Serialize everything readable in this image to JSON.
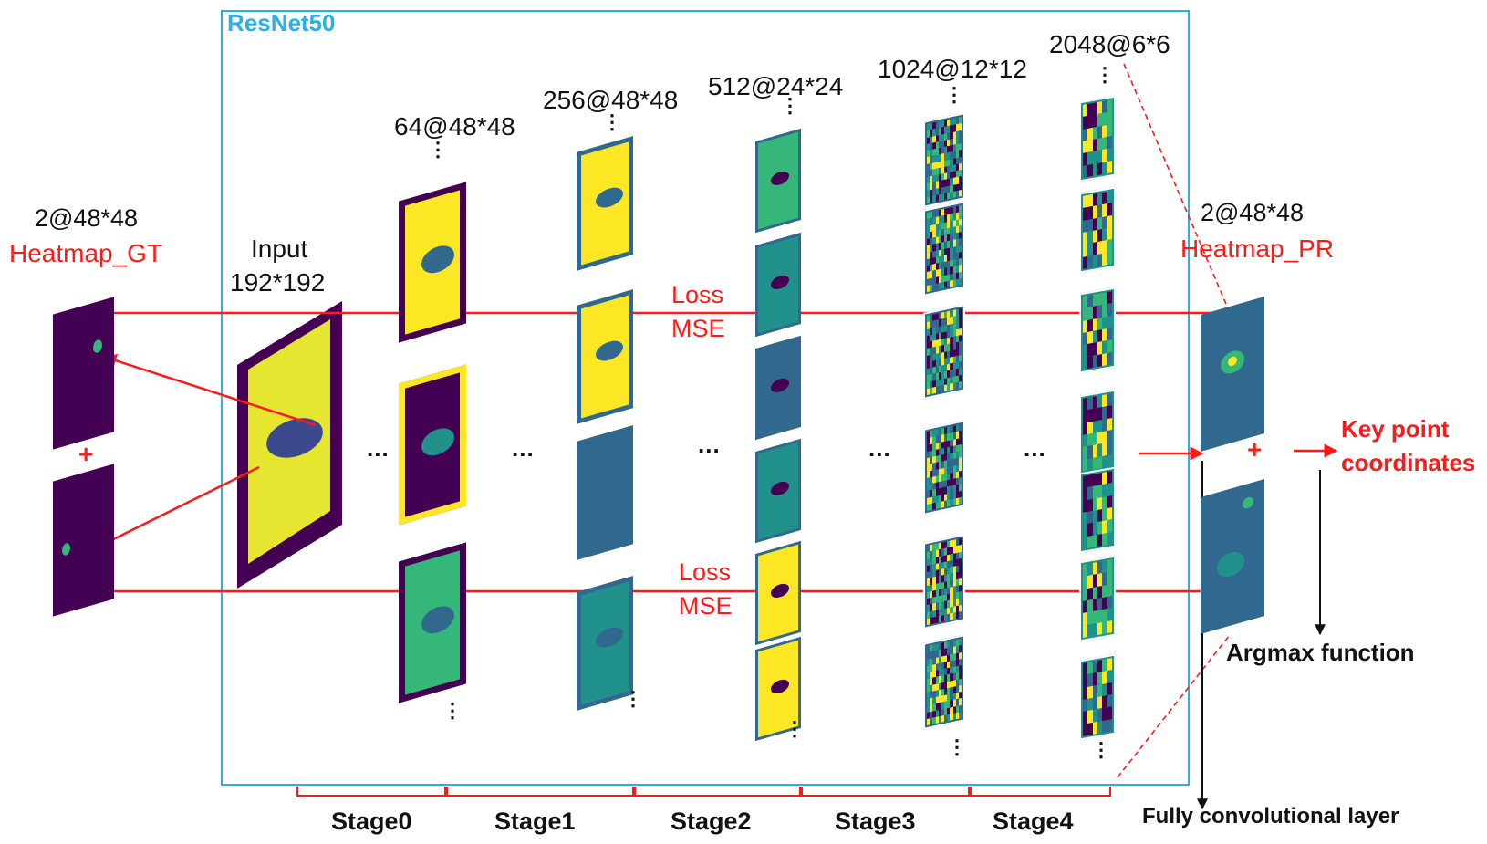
{
  "diagram": {
    "backbone_label": "ResNet50",
    "input": {
      "title": "Input",
      "size": "192*192"
    },
    "gt": {
      "shape": "2@48*48",
      "name": "Heatmap_GT",
      "plus": "+"
    },
    "pr": {
      "shape": "2@48*48",
      "name": "Heatmap_PR",
      "plus": "+"
    },
    "feature_maps": {
      "stage0": "64@48*48",
      "stage1": "256@48*48",
      "stage2": "512@24*24",
      "stage3": "1024@12*12",
      "stage4": "2048@6*6"
    },
    "loss_top": {
      "line1": "Loss",
      "line2": "MSE"
    },
    "loss_bottom": {
      "line1": "Loss",
      "line2": "MSE"
    },
    "ellipsis": "...",
    "vertical_dots": "⋮",
    "keypoint": {
      "line1": "Key point",
      "line2": "coordinates"
    },
    "argmax": "Argmax function",
    "fcn": "Fully convolutional layer",
    "stages": [
      "Stage0",
      "Stage1",
      "Stage2",
      "Stage3",
      "Stage4"
    ]
  },
  "colors": {
    "backbone_box": "#2ab0e6",
    "arrow_red": "#ff1a1a",
    "viridis_dark": "#440154",
    "viridis_blue": "#31688e",
    "viridis_teal": "#21918c",
    "viridis_green": "#35b779",
    "viridis_yellow": "#fde725"
  }
}
